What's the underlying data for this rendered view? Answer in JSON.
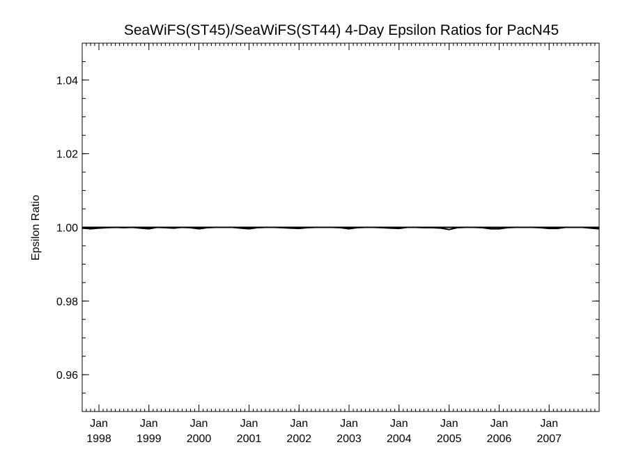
{
  "chart_data": {
    "type": "line",
    "title": "SeaWiFS(ST45)/SeaWiFS(ST44) 4-Day Epsilon Ratios for PacN45",
    "xlabel": "",
    "ylabel": "Epsilon Ratio",
    "xlim": [
      "1997-09-01",
      "2008-01-01"
    ],
    "ylim": [
      0.95,
      1.05
    ],
    "yticks": [
      0.96,
      0.98,
      1.0,
      1.02,
      1.04
    ],
    "ytick_labels": [
      "0.96",
      "0.98",
      "1.00",
      "1.02",
      "1.04"
    ],
    "xticks": [
      "1998-01-01",
      "1999-01-01",
      "2000-01-01",
      "2001-01-01",
      "2002-01-01",
      "2003-01-01",
      "2004-01-01",
      "2005-01-01",
      "2006-01-01",
      "2007-01-01"
    ],
    "xtick_labels": [
      {
        "month": "Jan",
        "year": "1998"
      },
      {
        "month": "Jan",
        "year": "1999"
      },
      {
        "month": "Jan",
        "year": "2000"
      },
      {
        "month": "Jan",
        "year": "2001"
      },
      {
        "month": "Jan",
        "year": "2002"
      },
      {
        "month": "Jan",
        "year": "2003"
      },
      {
        "month": "Jan",
        "year": "2004"
      },
      {
        "month": "Jan",
        "year": "2005"
      },
      {
        "month": "Jan",
        "year": "2006"
      },
      {
        "month": "Jan",
        "year": "2007"
      }
    ],
    "grid": false,
    "legend": "none",
    "line_color": "#000000",
    "series": [
      {
        "name": "",
        "x": [
          "1997-09-01",
          "1997-11-01",
          "1998-01-01",
          "1998-03-01",
          "1998-05-01",
          "1998-07-01",
          "1998-09-01",
          "1998-11-01",
          "1999-01-01",
          "1999-03-01",
          "1999-05-01",
          "1999-07-01",
          "1999-09-01",
          "1999-11-01",
          "2000-01-01",
          "2000-03-01",
          "2000-05-01",
          "2000-07-01",
          "2000-09-01",
          "2000-11-01",
          "2001-01-01",
          "2001-03-01",
          "2001-05-01",
          "2001-07-01",
          "2001-09-01",
          "2001-11-01",
          "2002-01-01",
          "2002-03-01",
          "2002-05-01",
          "2002-07-01",
          "2002-09-01",
          "2002-11-01",
          "2003-01-01",
          "2003-03-01",
          "2003-05-01",
          "2003-07-01",
          "2003-09-01",
          "2003-11-01",
          "2004-01-01",
          "2004-03-01",
          "2004-05-01",
          "2004-07-01",
          "2004-09-01",
          "2004-11-01",
          "2005-01-01",
          "2005-03-01",
          "2005-05-01",
          "2005-07-01",
          "2005-09-01",
          "2005-11-01",
          "2006-01-01",
          "2006-03-01",
          "2006-05-01",
          "2006-07-01",
          "2006-09-01",
          "2006-11-01",
          "2007-01-01",
          "2007-03-01",
          "2007-05-01",
          "2007-07-01",
          "2007-09-01",
          "2007-11-01",
          "2007-12-31"
        ],
        "y": [
          0.9998,
          0.9996,
          0.9998,
          0.9999,
          1.0,
          0.9999,
          1.0,
          0.9998,
          0.9996,
          1.0,
          0.9999,
          0.9998,
          1.0,
          0.9999,
          0.9996,
          0.9999,
          1.0,
          1.0,
          1.0,
          0.9998,
          0.9996,
          0.9999,
          1.0,
          1.0,
          0.9999,
          0.9998,
          0.9997,
          0.9999,
          1.0,
          1.0,
          1.0,
          0.9999,
          0.9996,
          0.9999,
          1.0,
          1.0,
          0.9999,
          0.9998,
          0.9997,
          1.0,
          1.0,
          0.9999,
          0.9999,
          0.9998,
          0.9994,
          0.9999,
          1.0,
          1.0,
          0.9999,
          0.9996,
          0.9996,
          0.9999,
          1.0,
          1.0,
          1.0,
          0.9999,
          0.9997,
          0.9997,
          1.0,
          1.0,
          1.0,
          0.9998,
          0.9996
        ]
      },
      {
        "name": "",
        "x": [
          "1997-09-01",
          "2007-12-31"
        ],
        "y": [
          1.0,
          1.0
        ]
      }
    ]
  }
}
